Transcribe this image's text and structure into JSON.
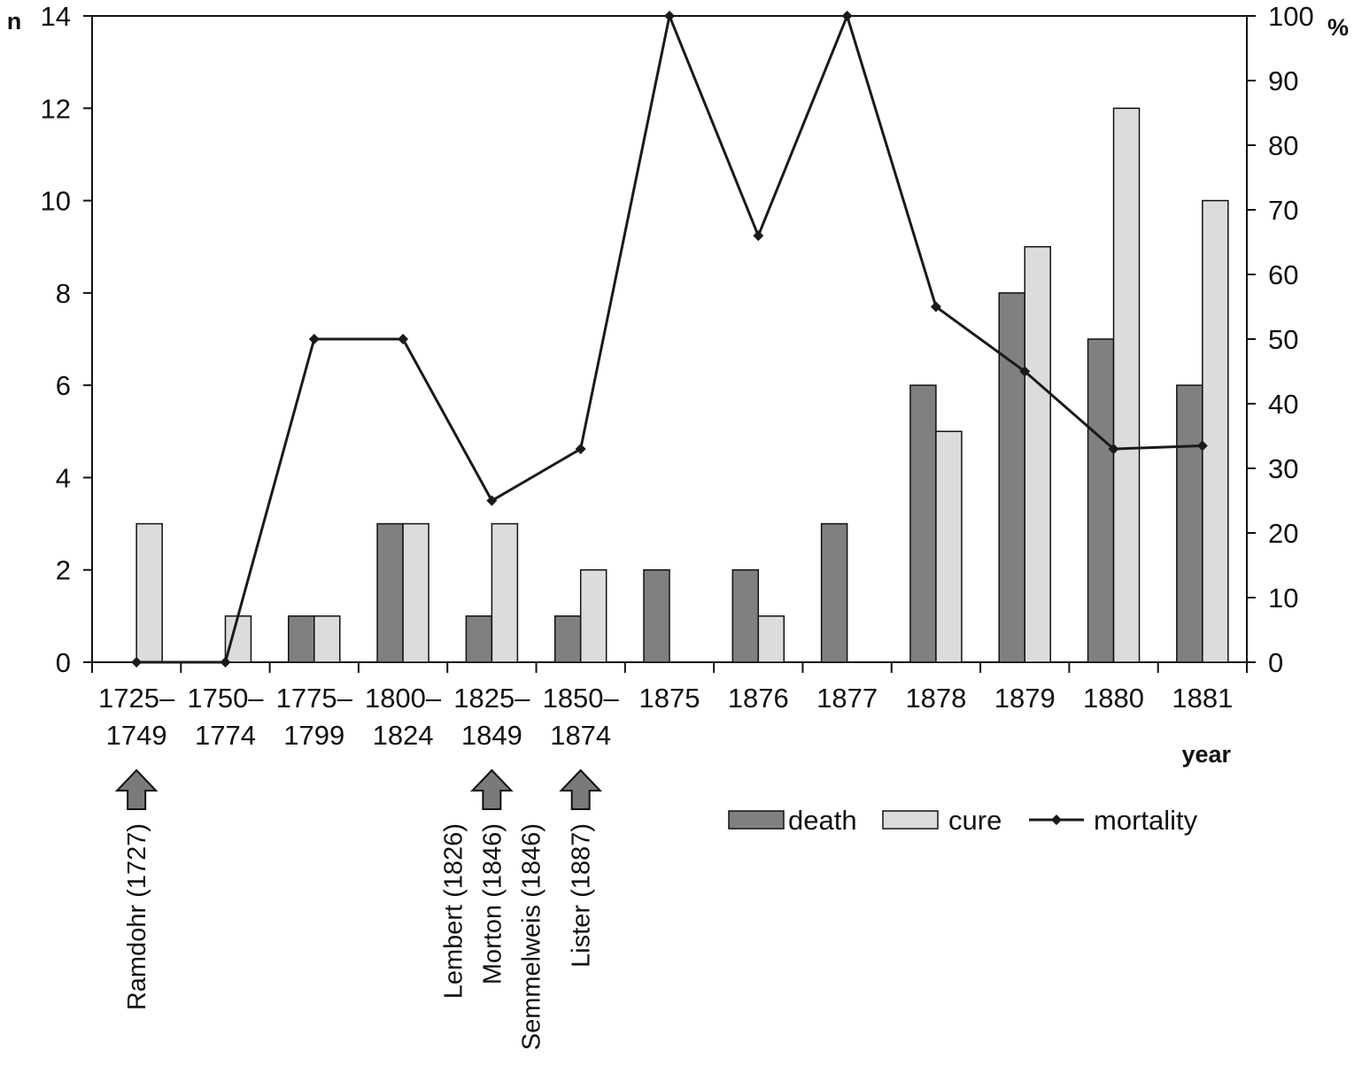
{
  "chart_data": {
    "type": "bar",
    "categories": [
      [
        "1725–",
        "1749"
      ],
      [
        "1750–",
        "1774"
      ],
      [
        "1775–",
        "1799"
      ],
      [
        "1800–",
        "1824"
      ],
      [
        "1825–",
        "1849"
      ],
      [
        "1850–",
        "1874"
      ],
      [
        "1875"
      ],
      [
        "1876"
      ],
      [
        "1877"
      ],
      [
        "1878"
      ],
      [
        "1879"
      ],
      [
        "1880"
      ],
      [
        "1881"
      ]
    ],
    "series": [
      {
        "name": "death",
        "kind": "bar",
        "axis": "left",
        "color": "#808080",
        "values": [
          0,
          0,
          1,
          3,
          1,
          1,
          2,
          2,
          3,
          6,
          8,
          7,
          6
        ]
      },
      {
        "name": "cure",
        "kind": "bar",
        "axis": "left",
        "color": "#dcdcdc",
        "values": [
          3,
          1,
          1,
          3,
          3,
          2,
          0,
          1,
          0,
          5,
          9,
          12,
          10
        ]
      },
      {
        "name": "mortality",
        "kind": "line",
        "axis": "right",
        "color": "#1a1a1a",
        "values": [
          0,
          0,
          50,
          50,
          25,
          33,
          100,
          66,
          100,
          55,
          45,
          33,
          33.5
        ]
      }
    ],
    "left_axis": {
      "label": "n",
      "ylim": [
        0,
        14
      ],
      "ticks": [
        "0",
        "2",
        "4",
        "6",
        "8",
        "10",
        "12",
        "14"
      ]
    },
    "right_axis": {
      "label": "%",
      "ylim": [
        0,
        100
      ],
      "ticks": [
        "0",
        "10",
        "20",
        "30",
        "40",
        "50",
        "60",
        "70",
        "80",
        "90",
        "100"
      ]
    },
    "xlabel": "year",
    "legend": {
      "position": "bottom-right",
      "entries": [
        "death",
        "cure",
        "mortality"
      ]
    },
    "grid": false,
    "annotations": [
      {
        "category_index": 0,
        "lines": [
          "Ramdohr (1727)"
        ]
      },
      {
        "category_index": 4,
        "lines": [
          "Lembert (1826)",
          "Morton (1846)",
          "Semmelweis (1846)"
        ]
      },
      {
        "category_index": 5,
        "lines": [
          "Lister (1887)"
        ]
      }
    ]
  }
}
